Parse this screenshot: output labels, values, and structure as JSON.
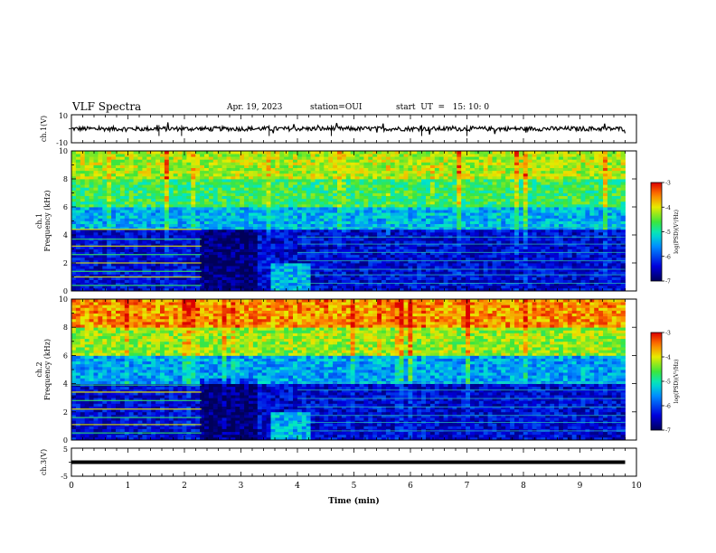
{
  "header": {
    "title": "VLF Spectra",
    "date": "Apr. 19, 2023",
    "station": "station=OUI",
    "start": "start  UT  =   15: 10: 0"
  },
  "chart_data": [
    {
      "type": "line",
      "panel": "ch1-waveform",
      "ylabel": "ch.1(V)",
      "ylim": [
        -10,
        10
      ],
      "y_tick_labels": [
        "10",
        "-10"
      ],
      "x_unit": "min",
      "xlim": [
        0,
        10
      ],
      "series": [
        {
          "x": [
            0,
            0.5,
            1,
            1.5,
            2,
            2.5,
            3,
            3.5,
            4,
            4.5,
            5,
            5.5,
            6,
            6.5,
            7,
            7.5,
            8,
            8.5,
            9,
            9.5,
            9.8
          ],
          "y": [
            0,
            0.5,
            -0.5,
            0.3,
            -0.4,
            0.2,
            0.5,
            -0.3,
            0.1,
            -0.5,
            0.4,
            0,
            -0.2,
            0.3,
            -0.4,
            0.2,
            0,
            -0.3,
            0.4,
            -0.2,
            0
          ]
        }
      ]
    },
    {
      "type": "heatmap",
      "panel": "ch1-spectrogram",
      "ylabel_channel": "ch.1",
      "ylabel": "Frequency (kHz)",
      "ylim": [
        0,
        10
      ],
      "y_ticks": [
        0,
        2,
        4,
        6,
        8,
        10
      ],
      "xlim": [
        0,
        10
      ],
      "data_end_min": 9.8,
      "colorbar": {
        "label": "log(PSD)(V²/Hz)",
        "range": [
          -7,
          -3
        ],
        "ticks": [
          -3,
          -4,
          -5,
          -6,
          -7
        ]
      },
      "bands": [
        {
          "from_kHz": 0,
          "to_kHz": 4.5,
          "level": -6.4
        },
        {
          "from_kHz": 4.5,
          "to_kHz": 6,
          "level": -5.4
        },
        {
          "from_kHz": 6,
          "to_kHz": 8,
          "level": -4.7
        },
        {
          "from_kHz": 8,
          "to_kHz": 10,
          "level": -4.2
        }
      ]
    },
    {
      "type": "heatmap",
      "panel": "ch2-spectrogram",
      "ylabel_channel": "ch.2",
      "ylabel": "Frequency (kHz)",
      "ylim": [
        0,
        10
      ],
      "y_ticks": [
        0,
        2,
        4,
        6,
        8,
        10
      ],
      "xlim": [
        0,
        10
      ],
      "data_end_min": 9.8,
      "colorbar": {
        "label": "log(PSD)(V²/Hz)",
        "range": [
          -7,
          -3
        ],
        "ticks": [
          -3,
          -4,
          -5,
          -6,
          -7
        ]
      },
      "bands": [
        {
          "from_kHz": 0,
          "to_kHz": 4,
          "level": -6.4
        },
        {
          "from_kHz": 4,
          "to_kHz": 6,
          "level": -5.5
        },
        {
          "from_kHz": 6,
          "to_kHz": 8,
          "level": -4.3
        },
        {
          "from_kHz": 8,
          "to_kHz": 10,
          "level": -3.6
        }
      ]
    },
    {
      "type": "line",
      "panel": "ch3-waveform",
      "ylabel": "ch.3(V)",
      "ylim": [
        -5,
        5
      ],
      "y_tick_labels": [
        "5",
        "-5"
      ],
      "xlim": [
        0,
        10
      ],
      "xlabel": "Time  (min)",
      "x_ticks": [
        0,
        1,
        2,
        3,
        4,
        5,
        6,
        7,
        8,
        9,
        10
      ],
      "series": [
        {
          "x": [
            0,
            9.8
          ],
          "y": [
            0,
            0
          ]
        }
      ]
    }
  ]
}
